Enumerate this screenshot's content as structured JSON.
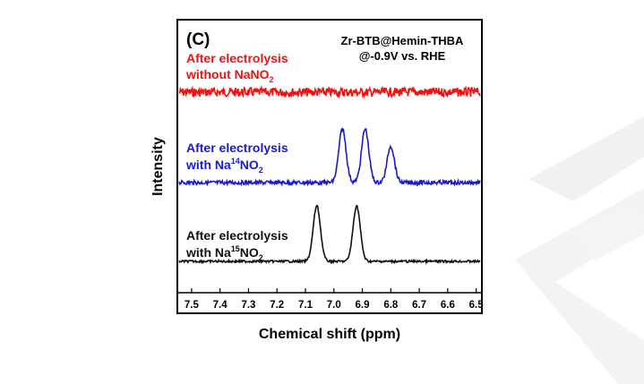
{
  "chart_data": {
    "type": "line",
    "panel_label": "(C)",
    "annotation": {
      "line1": "Zr-BTB@Hemin-THBA",
      "line2": "@-0.9V vs. RHE"
    },
    "xlabel": "Chemical shift (ppm)",
    "ylabel": "Intensity",
    "x_reversed": true,
    "xlim": [
      7.55,
      6.48
    ],
    "x_ticks": [
      7.5,
      7.4,
      7.3,
      7.2,
      7.1,
      7.0,
      6.9,
      6.8,
      6.7,
      6.6,
      6.5
    ],
    "x_tick_labels": [
      "7.5",
      "7.4",
      "7.3",
      "7.2",
      "7.1",
      "7.0",
      "6.9",
      "6.8",
      "6.7",
      "6.6",
      "6.5"
    ],
    "series": [
      {
        "label_line1": "After electrolysis",
        "label_line2_pre": "without NaNO",
        "label_line2_sub": "2",
        "label_line2_sup": "",
        "label_line2_post": "",
        "color": "#ee1111",
        "peaks": []
      },
      {
        "label_line1": "After electrolysis",
        "label_line2_pre": "with Na",
        "label_line2_sup": "14",
        "label_line2_mid": "NO",
        "label_line2_sub": "2",
        "color": "#1a1acc",
        "peaks": [
          {
            "x": 6.97,
            "height": 1.0
          },
          {
            "x": 6.89,
            "height": 1.0
          },
          {
            "x": 6.8,
            "height": 0.68
          }
        ]
      },
      {
        "label_line1": "After electrolysis",
        "label_line2_pre": "with Na",
        "label_line2_sup": "15",
        "label_line2_mid": "NO",
        "label_line2_sub": "2",
        "color": "#111111",
        "peaks": [
          {
            "x": 7.06,
            "height": 1.0
          },
          {
            "x": 6.92,
            "height": 1.0
          }
        ]
      }
    ]
  }
}
